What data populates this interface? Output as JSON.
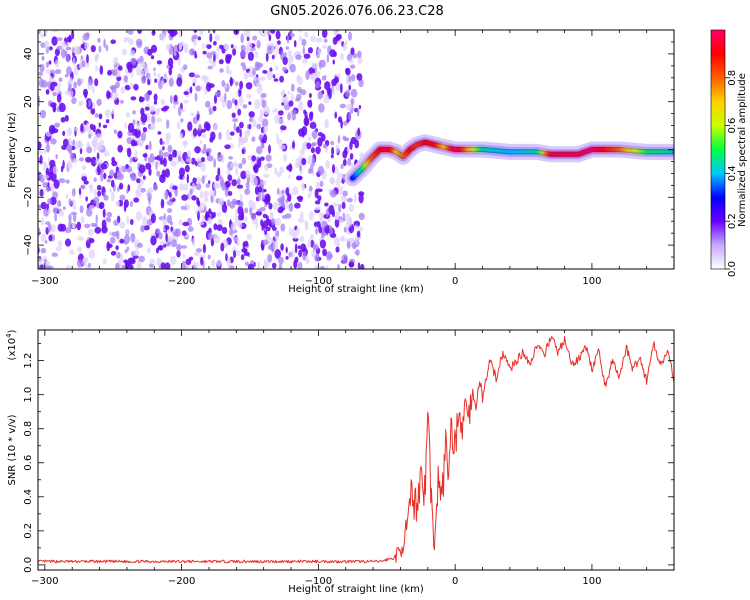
{
  "title": "GN05.2026.076.06.23.C28",
  "chart_data": [
    {
      "type": "heatmap",
      "panel": "spectrogram",
      "xlabel": "Height of straight line (km)",
      "ylabel": "Frequency (Hz)",
      "xlim": [
        -305,
        160
      ],
      "ylim": [
        -50,
        50
      ],
      "x_ticks": [
        -300,
        -200,
        -100,
        0,
        100
      ],
      "y_ticks": [
        -40,
        -20,
        0,
        20,
        40
      ],
      "noise_region_x": [
        -305,
        -68
      ],
      "signal_track": {
        "x": [
          -75,
          -68,
          -62,
          -55,
          -48,
          -43,
          -38,
          -33,
          -28,
          -22,
          -15,
          -8,
          0,
          20,
          40,
          60,
          70,
          90,
          100,
          120,
          140,
          160
        ],
        "freq_hz": [
          -12,
          -8,
          -4,
          0,
          0,
          -1,
          -3,
          0,
          2,
          3,
          2,
          1,
          0,
          0,
          -1,
          -1,
          -2,
          -2,
          0,
          0,
          -1,
          -1
        ],
        "amplitude": [
          0.3,
          0.5,
          0.8,
          0.9,
          0.95,
          0.7,
          0.8,
          0.9,
          0.85,
          0.9,
          0.9,
          0.7,
          1.0,
          0.45,
          0.4,
          0.45,
          0.95,
          0.95,
          0.98,
          0.8,
          0.5,
          0.45
        ]
      },
      "colorbar": {
        "label": "Normalized spectral amplitude",
        "range": [
          0,
          1
        ],
        "ticks": [
          "0.0",
          "0.2",
          "0.4",
          "0.6",
          "0.8"
        ],
        "colors": [
          "#ffffff",
          "#c8a8ff",
          "#6a00ff",
          "#0000ff",
          "#00c8ff",
          "#00ff40",
          "#c8ff00",
          "#ffd000",
          "#ff6000",
          "#ff0000",
          "#ff0066"
        ]
      }
    },
    {
      "type": "line",
      "panel": "snr",
      "xlabel": "Height of straight line (km)",
      "ylabel": "SNR (10 * v/v)",
      "scale_label": "(x10",
      "scale_exp": "4",
      "scale_close": ")",
      "xlim": [
        -305,
        160
      ],
      "ylim": [
        -0.03,
        1.38
      ],
      "x_ticks": [
        -300,
        -200,
        -100,
        0,
        100
      ],
      "y_ticks": [
        "0.0",
        "0.2",
        "0.4",
        "0.6",
        "0.8",
        "1.0",
        "1.2"
      ],
      "line_color": "#e8302a",
      "series": {
        "x": [
          -305,
          -200,
          -100,
          -55,
          -45,
          -40,
          -35,
          -32,
          -28,
          -25,
          -22,
          -20,
          -17,
          -15,
          -12,
          -10,
          -7,
          -5,
          -3,
          0,
          3,
          5,
          8,
          10,
          13,
          15,
          18,
          20,
          25,
          30,
          35,
          40,
          45,
          50,
          55,
          60,
          65,
          70,
          75,
          80,
          85,
          90,
          95,
          100,
          105,
          110,
          115,
          120,
          125,
          130,
          135,
          140,
          145,
          150,
          155,
          160
        ],
        "y": [
          0.02,
          0.02,
          0.02,
          0.02,
          0.04,
          0.08,
          0.22,
          0.4,
          0.35,
          0.55,
          0.42,
          0.93,
          0.3,
          0.1,
          0.55,
          0.35,
          0.7,
          0.55,
          0.8,
          0.7,
          0.95,
          0.75,
          1.0,
          0.85,
          1.05,
          0.9,
          1.1,
          0.95,
          1.2,
          1.1,
          1.25,
          1.15,
          1.2,
          1.25,
          1.18,
          1.3,
          1.22,
          1.35,
          1.25,
          1.32,
          1.18,
          1.2,
          1.3,
          1.15,
          1.25,
          1.05,
          1.2,
          1.1,
          1.28,
          1.15,
          1.22,
          1.08,
          1.3,
          1.18,
          1.25,
          1.1
        ]
      }
    }
  ]
}
